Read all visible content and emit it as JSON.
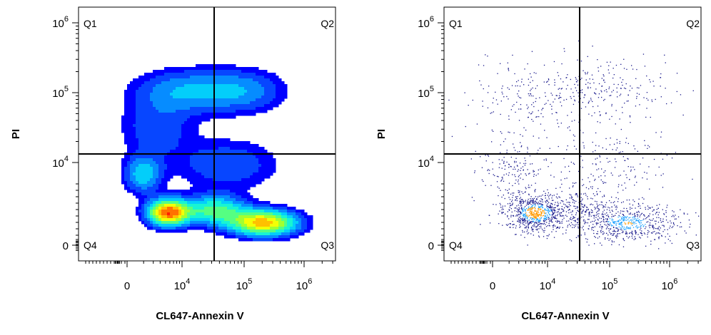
{
  "chart_data": [
    {
      "type": "density",
      "style": "pseudocolor-contour",
      "xlabel": "CL647-Annexin V",
      "ylabel": "PI",
      "x_ticks": [
        {
          "base": "0",
          "exp": ""
        },
        {
          "base": "10",
          "exp": "4"
        },
        {
          "base": "10",
          "exp": "5"
        },
        {
          "base": "10",
          "exp": "6"
        }
      ],
      "y_ticks": [
        {
          "base": "0",
          "exp": ""
        },
        {
          "base": "10",
          "exp": "4"
        },
        {
          "base": "10",
          "exp": "5"
        },
        {
          "base": "10",
          "exp": "6"
        }
      ],
      "quadrants": [
        "Q1",
        "Q2",
        "Q3",
        "Q4"
      ],
      "x_scale": "biexponential",
      "y_scale": "biexponential",
      "gate_x": 35000,
      "gate_y": 14000
    },
    {
      "type": "scatter",
      "style": "pseudocolor-dot",
      "xlabel": "CL647-Annexin V",
      "ylabel": "PI",
      "x_ticks": [
        {
          "base": "0",
          "exp": ""
        },
        {
          "base": "10",
          "exp": "4"
        },
        {
          "base": "10",
          "exp": "5"
        },
        {
          "base": "10",
          "exp": "6"
        }
      ],
      "y_ticks": [
        {
          "base": "0",
          "exp": ""
        },
        {
          "base": "10",
          "exp": "4"
        },
        {
          "base": "10",
          "exp": "5"
        },
        {
          "base": "10",
          "exp": "6"
        }
      ],
      "quadrants": [
        "Q1",
        "Q2",
        "Q3",
        "Q4"
      ],
      "x_scale": "biexponential",
      "y_scale": "biexponential",
      "gate_x": 35000,
      "gate_y": 14000
    }
  ],
  "colors": {
    "density_ramp": [
      "#0000ff",
      "#0a64ff",
      "#00c8ff",
      "#1effc8",
      "#8cff3c",
      "#ffff00",
      "#ff9600",
      "#ff1e00"
    ],
    "dot_primary": "#1a1a8c",
    "gate": "#000000"
  }
}
